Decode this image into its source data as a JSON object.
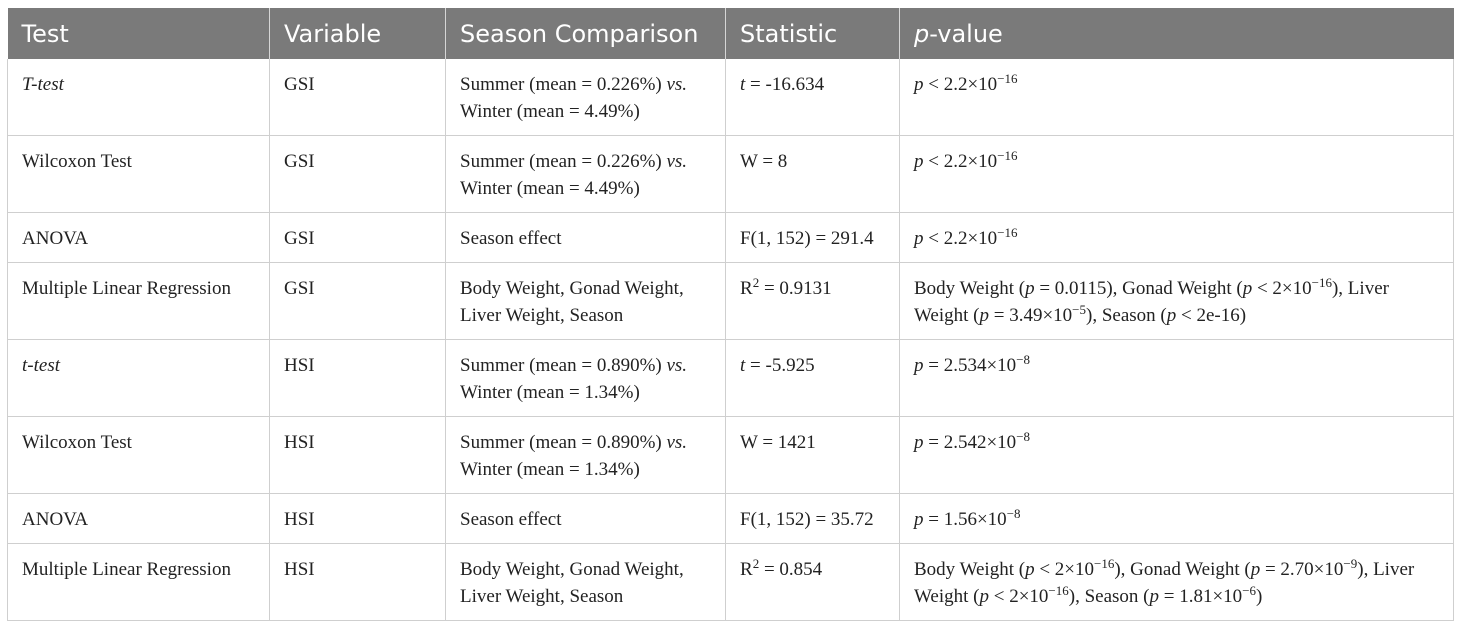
{
  "headers": {
    "test": "Test",
    "variable": "Variable",
    "season_comparison": "Season Comparison",
    "statistic": "Statistic",
    "p_value_p": "p",
    "p_value_rest": "-value"
  },
  "rows": [
    {
      "test": "T-test",
      "variable": "GSI",
      "comparison_a": "Summer (mean = 0.226%) ",
      "comparison_vs": "vs.",
      "comparison_b": "Winter (mean = 4.49%)",
      "stat_sym": "t",
      "stat_rest": " = -16.634",
      "pv_p": "p",
      "pv_text": " < 2.2×10",
      "pv_exp": "−16"
    },
    {
      "test": "Wilcoxon Test",
      "variable": "GSI",
      "comparison_a": "Summer (mean = 0.226%) ",
      "comparison_vs": "vs.",
      "comparison_b": "Winter (mean = 4.49%)",
      "stat": "W = 8",
      "pv_p": "p",
      "pv_text": " < 2.2×10",
      "pv_exp": "−16"
    },
    {
      "test": "ANOVA",
      "variable": "GSI",
      "comparison": "Season effect",
      "stat": "F(1, 152) = 291.4",
      "pv_p": "p",
      "pv_text": " < 2.2×10",
      "pv_exp": "−16"
    },
    {
      "test": "Multiple Linear Regression",
      "variable": "GSI",
      "comparison": "Body Weight, Gonad Weight, Liver Weight, Season",
      "stat_base": "R",
      "stat_exp": "2",
      "stat_rest": " = 0.9131",
      "pv": {
        "s1": "Body Weight (",
        "p1": "p",
        "s2": " = 0.0115), Gonad Weight (",
        "p2": "p",
        "s3": " < 2×10",
        "e1": "−16",
        "s4": "), Liver Weight (",
        "p3": "p",
        "s5": " = 3.49×10",
        "e2": "−5",
        "s6": "), Season (",
        "p4": "p",
        "s7": " < 2e-16)"
      }
    },
    {
      "test": "t-test",
      "variable": "HSI",
      "comparison_a": "Summer (mean = 0.890%) ",
      "comparison_vs": "vs.",
      "comparison_b": "Winter (mean = 1.34%)",
      "stat_sym": "t",
      "stat_rest": " = -5.925",
      "pv_p": "p",
      "pv_text": " = 2.534×10",
      "pv_exp": "−8"
    },
    {
      "test": "Wilcoxon Test",
      "variable": "HSI",
      "comparison_a": "Summer (mean = 0.890%) ",
      "comparison_vs": "vs.",
      "comparison_b": "Winter (mean = 1.34%)",
      "stat": "W = 1421",
      "pv_p": "p",
      "pv_text": " = 2.542×10",
      "pv_exp": "−8"
    },
    {
      "test": "ANOVA",
      "variable": "HSI",
      "comparison": "Season effect",
      "stat": "F(1, 152) = 35.72",
      "pv_p": "p",
      "pv_text": " = 1.56×10",
      "pv_exp": "−8"
    },
    {
      "test": "Multiple Linear Regression",
      "variable": "HSI",
      "comparison": "Body Weight, Gonad Weight, Liver Weight, Season",
      "stat_base": "R",
      "stat_exp": "2",
      "stat_rest": " = 0.854",
      "pv": {
        "s1": "Body Weight (",
        "p1": "p",
        "s2": " < 2×10",
        "e1": "−16",
        "s3": "), Gonad Weight (",
        "p2": "p",
        "s4": " = 2.70×10",
        "e2": "−9",
        "s5": "), Liver Weight (",
        "p3": "p",
        "s6": " < 2×10",
        "e3": "−16",
        "s7": "), Season (",
        "p4": "p",
        "s8": " = 1.81×10",
        "e4": "−6",
        "s9": ")"
      }
    }
  ],
  "colors": {
    "header_bg": "#7a7a7a",
    "header_text": "#ffffff",
    "grid": "#cfcfcf"
  }
}
